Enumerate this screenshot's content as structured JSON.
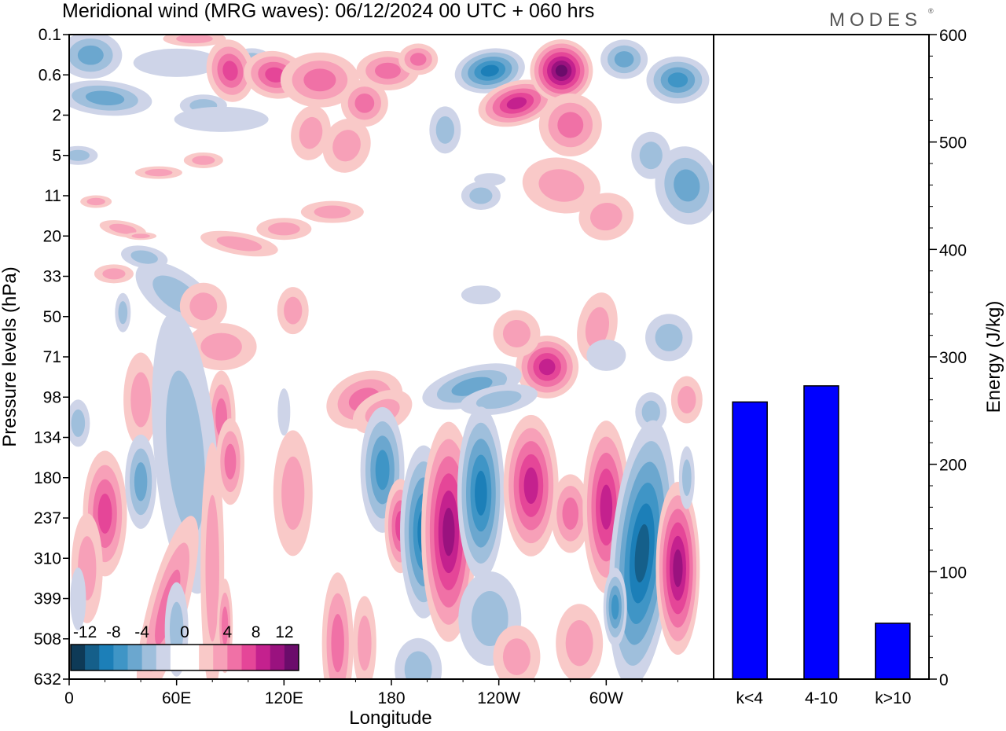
{
  "header": {
    "title": "Meridional wind (MRG waves):  06/12/2024  00 UTC  + 060 hrs",
    "brand": "MODES",
    "brand_mark": "®"
  },
  "chart_data": [
    {
      "type": "heatmap",
      "variable": "Meridional wind (MRG waves)",
      "date": "06/12/2024",
      "time": "00 UTC",
      "lead": "+ 060 hrs",
      "xlabel": "Longitude",
      "ylabel": "Pressure levels (hPa)",
      "x_ticks": [
        "0",
        "60E",
        "120E",
        "180",
        "120W",
        "60W"
      ],
      "x_range_deg": [
        0,
        360
      ],
      "y_ticks": [
        "0.1",
        "0.6",
        "2",
        "5",
        "11",
        "20",
        "33",
        "50",
        "71",
        "98",
        "134",
        "180",
        "237",
        "310",
        "399",
        "508",
        "632"
      ],
      "colorbar": {
        "labels": [
          "-12",
          "-8",
          "-4",
          "0",
          "4",
          "8",
          "12"
        ],
        "levels": [
          -14,
          -12,
          -10,
          -8,
          -6,
          -4,
          -2,
          2,
          4,
          6,
          8,
          10,
          12,
          14
        ],
        "colors": [
          "#0e3a57",
          "#155f8a",
          "#1c7fb8",
          "#3f95c6",
          "#6ba7cf",
          "#9fbfdc",
          "#ced4e8",
          "#ffffff",
          "#ffffff",
          "#f9c9c8",
          "#f7a0b8",
          "#f071a6",
          "#e54698",
          "#c4218e",
          "#9a127f",
          "#6b0c6b"
        ]
      },
      "features": [
        {
          "name": "upper-stratosphere positive max",
          "center": [
            125,
            0.6
          ],
          "value": 14
        },
        {
          "name": "upper-stratosphere negative",
          "center": [
            105,
            0.6
          ],
          "value": -10
        },
        {
          "name": "troposphere positive 1",
          "center": [
            20,
            237
          ],
          "value": 8
        },
        {
          "name": "troposphere negative 1",
          "center": [
            40,
            180
          ],
          "value": -6
        },
        {
          "name": "troposphere positive 2",
          "center": [
            212,
            237
          ],
          "value": 12
        },
        {
          "name": "troposphere negative 2",
          "center": [
            187,
            180
          ],
          "value": -10
        },
        {
          "name": "troposphere negative 3",
          "center": [
            235,
            180
          ],
          "value": -10
        },
        {
          "name": "troposphere positive 3",
          "center": [
            258,
            180
          ],
          "value": 10
        },
        {
          "name": "troposphere positive 4",
          "center": [
            308,
            237
          ],
          "value": 10
        },
        {
          "name": "troposphere negative 4",
          "center": [
            323,
            310
          ],
          "value": -12
        },
        {
          "name": "troposphere positive 5",
          "center": [
            340,
            310
          ],
          "value": 12
        }
      ]
    },
    {
      "type": "bar",
      "ylabel": "Energy (J/kg)",
      "categories": [
        "k<4",
        "4-10",
        "k>10"
      ],
      "values": [
        258,
        273,
        52
      ],
      "ylim": [
        0,
        600
      ],
      "y_ticks": [
        0,
        100,
        200,
        300,
        400,
        500,
        600
      ],
      "bar_color": "#0000ff"
    }
  ]
}
